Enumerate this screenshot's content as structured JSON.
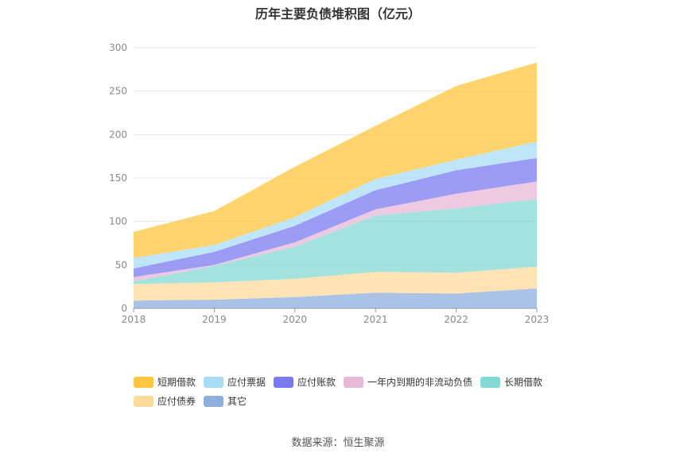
{
  "title": "历年主要负债堆积图（亿元）",
  "source": "数据来源：恒生聚源",
  "chart_data": {
    "type": "area",
    "stacked": true,
    "title": "历年主要负债堆积图（亿元）",
    "xlabel": "",
    "ylabel": "",
    "x": [
      "2018",
      "2019",
      "2020",
      "2021",
      "2022",
      "2023"
    ],
    "ylim": [
      0,
      300
    ],
    "yticks": [
      0,
      50,
      100,
      150,
      200,
      250,
      300
    ],
    "grid": true,
    "legend_position": "bottom",
    "series": [
      {
        "name": "其它",
        "color": "#8eaedc",
        "values": [
          9,
          10,
          13,
          18,
          17,
          23
        ]
      },
      {
        "name": "应付债券",
        "color": "#fdd99b",
        "values": [
          19,
          20,
          21,
          24,
          24,
          25
        ]
      },
      {
        "name": "长期借款",
        "color": "#85d8d6",
        "values": [
          3,
          19,
          37,
          65,
          74,
          78
        ]
      },
      {
        "name": "一年内到期的非流动负债",
        "color": "#e8b8d8",
        "values": [
          5,
          1,
          5,
          7,
          17,
          20
        ]
      },
      {
        "name": "应付账款",
        "color": "#7b7bf0",
        "values": [
          10,
          15,
          19,
          22,
          27,
          27
        ]
      },
      {
        "name": "应付票据",
        "color": "#a8dcf5",
        "values": [
          12,
          8,
          10,
          13,
          12,
          19
        ]
      },
      {
        "name": "短期借款",
        "color": "#ffc53d",
        "values": [
          30,
          39,
          58,
          61,
          85,
          91
        ]
      }
    ],
    "legend_order": [
      "短期借款",
      "应付票据",
      "应付账款",
      "一年内到期的非流动负债",
      "长期借款",
      "应付债券",
      "其它"
    ]
  }
}
